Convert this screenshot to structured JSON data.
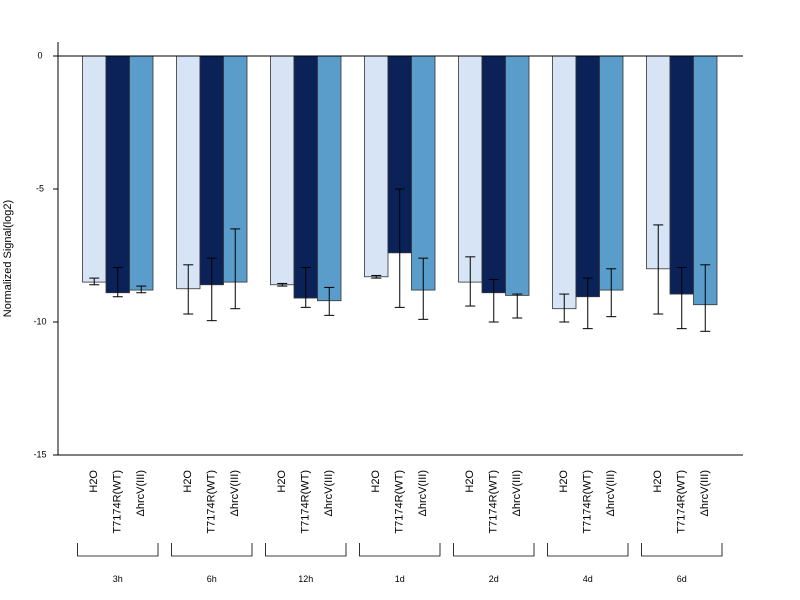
{
  "chart_data": {
    "type": "bar",
    "title": "",
    "xlabel": "",
    "ylabel": "Normalized Signal(log2)",
    "ylim": [
      -15,
      0.5
    ],
    "yticks": [
      0,
      -5,
      -10,
      -15
    ],
    "ytick_labels": [
      "0",
      "-5",
      "-10",
      "-15"
    ],
    "grid": false,
    "legend": "none",
    "groups": [
      "3h",
      "6h",
      "12h",
      "1d",
      "2d",
      "4d",
      "6d"
    ],
    "series": [
      {
        "name": "H2O",
        "color": "#d6e4f5",
        "values": [
          -8.5,
          -8.75,
          -8.6,
          -8.3,
          -8.5,
          -9.5,
          -8.0
        ],
        "err_low": [
          -8.6,
          -9.7,
          -8.65,
          -8.35,
          -9.4,
          -10.0,
          -9.7
        ],
        "err_high": [
          -8.35,
          -7.85,
          -8.55,
          -8.25,
          -7.55,
          -8.95,
          -6.35
        ]
      },
      {
        "name": "T7174R(WT)",
        "color": "#0b2259",
        "values": [
          -8.9,
          -8.6,
          -9.1,
          -7.4,
          -8.9,
          -9.05,
          -8.95
        ],
        "err_low": [
          -9.05,
          -9.95,
          -9.45,
          -9.45,
          -10.0,
          -10.25,
          -10.25
        ],
        "err_high": [
          -7.95,
          -7.6,
          -7.95,
          -5.0,
          -8.4,
          -8.35,
          -7.95
        ]
      },
      {
        "name": "ΔhrcV(III)",
        "color": "#5a9dcb",
        "values": [
          -8.8,
          -8.5,
          -9.2,
          -8.8,
          -9.0,
          -8.8,
          -9.35
        ],
        "err_low": [
          -8.9,
          -9.5,
          -9.75,
          -9.9,
          -9.85,
          -9.8,
          -10.35
        ],
        "err_high": [
          -8.65,
          -6.5,
          -8.7,
          -7.6,
          -8.95,
          -8.0,
          -7.85
        ]
      }
    ]
  }
}
